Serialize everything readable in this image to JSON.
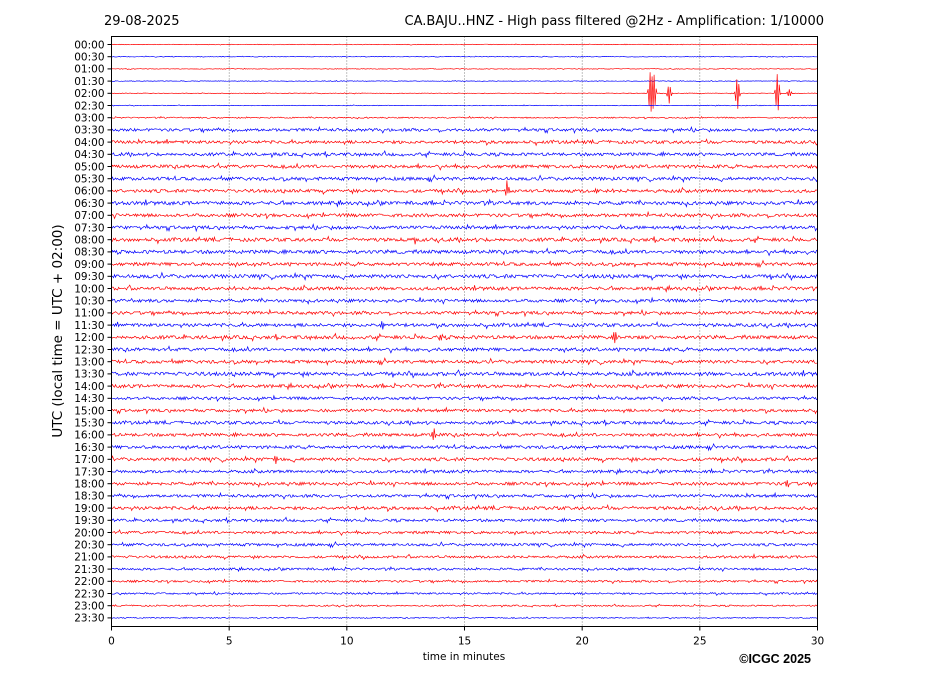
{
  "header": {
    "date": "29-08-2025",
    "title": "CA.BAJU..HNZ - High pass filtered @2Hz - Amplification: 1/10000"
  },
  "copyright": "©ICGC 2025",
  "chart_data": {
    "type": "line",
    "title": "CA.BAJU..HNZ - High pass filtered @2Hz - Amplification: 1/10000",
    "date": "29-08-2025",
    "xlabel": "time in minutes",
    "ylabel": "UTC (local time = UTC + 02:00)",
    "xlim": [
      0,
      30
    ],
    "x_ticks": [
      0,
      5,
      10,
      15,
      20,
      25,
      30
    ],
    "grid": "vertical dotted lines at 5, 10, 15, 20, 25",
    "row_labels": [
      "00:00",
      "00:30",
      "01:00",
      "01:30",
      "02:00",
      "02:30",
      "03:00",
      "03:30",
      "04:00",
      "04:30",
      "05:00",
      "05:30",
      "06:00",
      "06:30",
      "07:00",
      "07:30",
      "08:00",
      "08:30",
      "09:00",
      "09:30",
      "10:00",
      "10:30",
      "11:00",
      "11:30",
      "12:00",
      "12:30",
      "13:00",
      "13:30",
      "14:00",
      "14:30",
      "15:00",
      "15:30",
      "16:00",
      "16:30",
      "17:00",
      "17:30",
      "18:00",
      "18:30",
      "19:00",
      "19:30",
      "20:00",
      "20:30",
      "21:00",
      "21:30",
      "22:00",
      "22:30",
      "23:00",
      "23:30"
    ],
    "trace_colors": [
      "#ff0000",
      "#0000ff"
    ],
    "noise_level": [
      0.3,
      0.3,
      0.3,
      0.3,
      0.3,
      0.3,
      0.6,
      1.4,
      1.5,
      1.5,
      1.6,
      1.6,
      1.6,
      1.7,
      1.6,
      1.6,
      1.7,
      1.7,
      1.6,
      1.8,
      1.6,
      1.5,
      1.5,
      1.6,
      1.7,
      1.6,
      1.6,
      1.8,
      1.6,
      1.4,
      1.4,
      1.5,
      1.5,
      1.5,
      1.6,
      1.4,
      1.5,
      1.4,
      1.6,
      1.3,
      1.3,
      1.3,
      1.2,
      1.1,
      1.0,
      0.9,
      0.7,
      0.5
    ],
    "events": [
      {
        "row": "02:00",
        "minute": 22.9,
        "amplitude": 24
      },
      {
        "row": "02:00",
        "minute": 23.05,
        "amplitude": 20
      },
      {
        "row": "02:00",
        "minute": 23.7,
        "amplitude": 10
      },
      {
        "row": "02:00",
        "minute": 26.6,
        "amplitude": 18
      },
      {
        "row": "02:00",
        "minute": 28.3,
        "amplitude": 22
      },
      {
        "row": "02:00",
        "minute": 28.8,
        "amplitude": 4
      },
      {
        "row": "06:00",
        "minute": 16.8,
        "amplitude": 9
      },
      {
        "row": "06:00",
        "minute": 20.6,
        "amplitude": 4
      },
      {
        "row": "08:00",
        "minute": 12.9,
        "amplitude": 4
      },
      {
        "row": "11:30",
        "minute": 11.5,
        "amplitude": 4
      },
      {
        "row": "12:00",
        "minute": 14.0,
        "amplitude": 5
      },
      {
        "row": "12:00",
        "minute": 21.4,
        "amplitude": 5
      },
      {
        "row": "16:00",
        "minute": 13.7,
        "amplitude": 6
      },
      {
        "row": "17:00",
        "minute": 7.0,
        "amplitude": 5
      },
      {
        "row": "18:00",
        "minute": 28.7,
        "amplitude": 4
      }
    ]
  }
}
